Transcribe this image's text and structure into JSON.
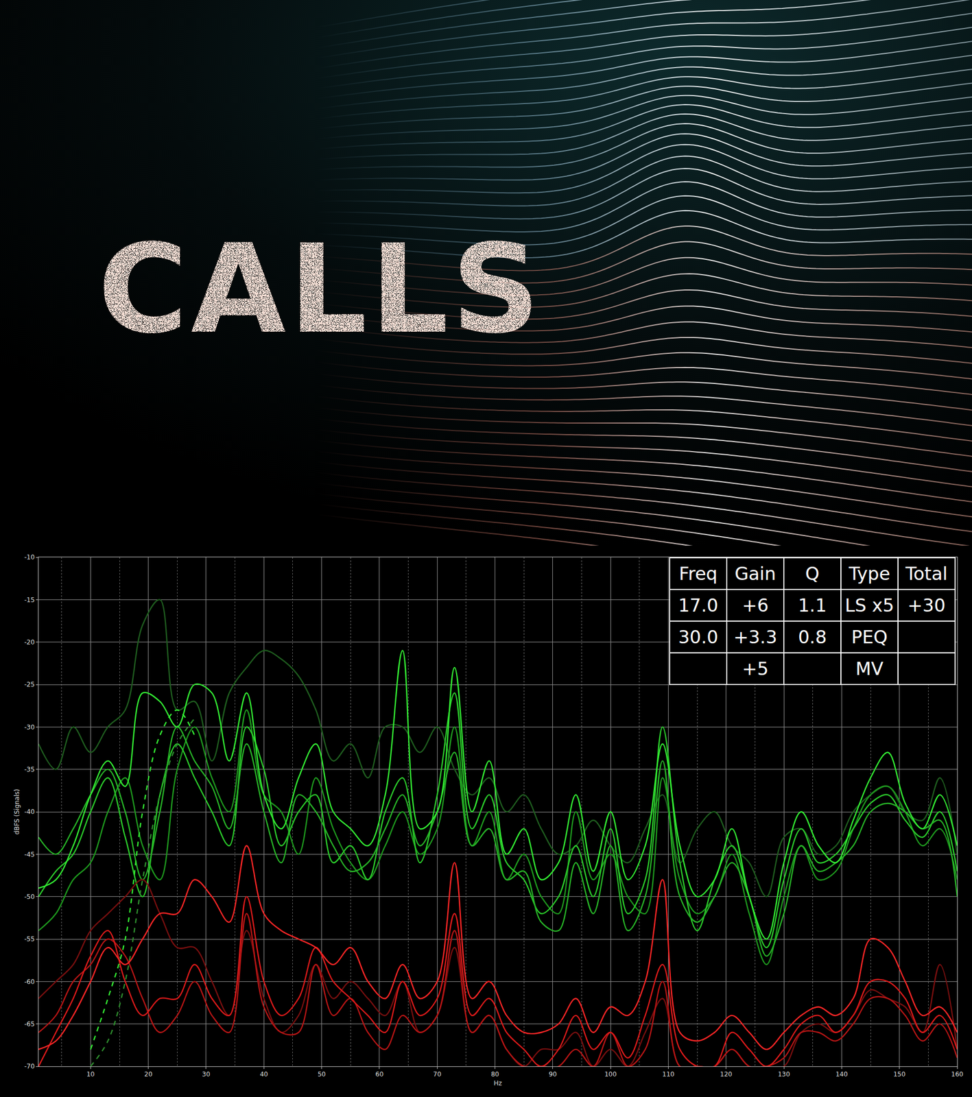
{
  "poster": {
    "title": "CALLS"
  },
  "chart_data": {
    "type": "line",
    "x_label": "Hz",
    "y_label": "dBFS (Signals)",
    "x": [
      1,
      4,
      7,
      10,
      13,
      16,
      19,
      22,
      25,
      28,
      31,
      34,
      37,
      40,
      43,
      46,
      49,
      52,
      55,
      58,
      61,
      64,
      67,
      70,
      73,
      76,
      79,
      82,
      85,
      88,
      91,
      94,
      97,
      100,
      103,
      106,
      109,
      112,
      115,
      118,
      121,
      124,
      127,
      130,
      133,
      136,
      139,
      142,
      145,
      148,
      151,
      154,
      157,
      160
    ],
    "xlim": [
      1,
      160
    ],
    "xticks": [
      10,
      20,
      30,
      40,
      50,
      60,
      70,
      80,
      90,
      100,
      110,
      120,
      130,
      140,
      150,
      160
    ],
    "ylim": [
      -70,
      -10
    ],
    "yticks": [
      -70,
      -65,
      -60,
      -55,
      -50,
      -45,
      -40,
      -35,
      -30,
      -25,
      -20,
      -15,
      -10
    ],
    "grid": true,
    "series": [
      {
        "color": "#1f5e1f",
        "line_style": "solid",
        "values": [
          -32,
          -35,
          -30,
          -33,
          -30,
          -28,
          -18,
          -15,
          -28,
          -27,
          -34,
          -26,
          -23,
          -21,
          -22,
          -24,
          -28,
          -34,
          -32,
          -36,
          -30,
          -30,
          -33,
          -30,
          -35,
          -38,
          -36,
          -40,
          -38,
          -42,
          -45,
          -44,
          -41,
          -44,
          -46,
          -42,
          -38,
          -46,
          -42,
          -40,
          -44,
          -46,
          -50,
          -43,
          -42,
          -45,
          -44,
          -40,
          -38,
          -37,
          -40,
          -41,
          -36,
          -45
        ]
      },
      {
        "color": "#1e9a1e",
        "line_style": "solid",
        "values": [
          -54,
          -52,
          -48,
          -46,
          -40,
          -36,
          -44,
          -48,
          -35,
          -30,
          -36,
          -40,
          -28,
          -38,
          -40,
          -45,
          -36,
          -42,
          -46,
          -48,
          -44,
          -40,
          -45,
          -42,
          -30,
          -44,
          -40,
          -48,
          -45,
          -50,
          -52,
          -40,
          -48,
          -45,
          -50,
          -52,
          -36,
          -48,
          -52,
          -50,
          -45,
          -52,
          -58,
          -50,
          -44,
          -48,
          -47,
          -42,
          -38,
          -37,
          -40,
          -44,
          -42,
          -48
        ]
      },
      {
        "color": "#2bcc2b",
        "line_style": "solid",
        "values": [
          -50,
          -47,
          -45,
          -40,
          -36,
          -43,
          -50,
          -38,
          -32,
          -36,
          -40,
          -44,
          -30,
          -35,
          -44,
          -40,
          -38,
          -46,
          -44,
          -48,
          -40,
          -36,
          -46,
          -38,
          -26,
          -42,
          -38,
          -46,
          -48,
          -52,
          -50,
          -44,
          -50,
          -42,
          -52,
          -48,
          -30,
          -46,
          -54,
          -48,
          -44,
          -50,
          -56,
          -48,
          -42,
          -46,
          -45,
          -42,
          -39,
          -38,
          -41,
          -43,
          -40,
          -47
        ]
      },
      {
        "color": "#27b527",
        "line_style": "solid",
        "values": [
          -43,
          -45,
          -42,
          -38,
          -35,
          -40,
          -48,
          -40,
          -30,
          -34,
          -37,
          -42,
          -32,
          -40,
          -46,
          -38,
          -40,
          -44,
          -47,
          -46,
          -42,
          -38,
          -44,
          -40,
          -33,
          -44,
          -42,
          -48,
          -47,
          -53,
          -54,
          -46,
          -52,
          -44,
          -54,
          -50,
          -34,
          -50,
          -53,
          -50,
          -46,
          -50,
          -57,
          -52,
          -44,
          -47,
          -46,
          -44,
          -40,
          -39,
          -40,
          -42,
          -41,
          -50
        ]
      },
      {
        "color": "#33ee33",
        "line_style": "solid",
        "values": [
          -49,
          -48,
          -44,
          -38,
          -34,
          -37,
          -26,
          -27,
          -30,
          -25,
          -26,
          -34,
          -26,
          -38,
          -42,
          -36,
          -32,
          -40,
          -42,
          -44,
          -38,
          -21,
          -42,
          -40,
          -23,
          -40,
          -34,
          -45,
          -42,
          -48,
          -46,
          -38,
          -47,
          -40,
          -48,
          -44,
          -32,
          -44,
          -50,
          -48,
          -42,
          -50,
          -55,
          -46,
          -40,
          -44,
          -46,
          -41,
          -36,
          -33,
          -39,
          -42,
          -38,
          -44
        ]
      },
      {
        "color": "#2e8f2e",
        "line_style": "dashed",
        "values": [
          null,
          null,
          null,
          -70,
          -67,
          -60,
          -48,
          -38,
          -32,
          -29,
          null,
          null,
          null,
          null,
          null,
          null,
          null,
          null,
          null,
          null,
          null,
          null,
          null,
          null,
          null,
          null,
          null,
          null,
          null,
          null,
          null,
          null,
          null,
          null,
          null,
          null,
          null,
          null,
          null,
          null,
          null,
          null,
          null,
          null,
          null,
          null,
          null,
          null,
          null,
          null,
          null,
          null,
          null,
          null
        ]
      },
      {
        "color": "#33ee33",
        "line_style": "dashed",
        "values": [
          null,
          null,
          null,
          -68,
          -62,
          -55,
          -40,
          -31,
          -28,
          -31,
          null,
          null,
          null,
          null,
          null,
          null,
          null,
          null,
          null,
          null,
          null,
          null,
          null,
          null,
          null,
          null,
          null,
          null,
          null,
          null,
          null,
          null,
          null,
          null,
          null,
          null,
          null,
          null,
          null,
          null,
          null,
          null,
          null,
          null,
          null,
          null,
          null,
          null,
          null,
          null,
          null,
          null,
          null,
          null
        ]
      },
      {
        "color": "#7a0f0f",
        "line_style": "solid",
        "values": [
          -62,
          -60,
          -58,
          -54,
          -52,
          -50,
          -48,
          -52,
          -56,
          -56,
          -60,
          -64,
          -54,
          -62,
          -66,
          -64,
          -58,
          -62,
          -60,
          -62,
          -64,
          -60,
          -66,
          -64,
          -56,
          -66,
          -64,
          -68,
          -70,
          -68,
          -68,
          -66,
          -70,
          -68,
          -70,
          -66,
          -62,
          -70,
          -70,
          -70,
          -68,
          -70,
          -70,
          -70,
          -66,
          -65,
          -66,
          -64,
          -61,
          -62,
          -63,
          -66,
          -58,
          -68
        ]
      },
      {
        "color": "#b81515",
        "line_style": "solid",
        "values": [
          -66,
          -64,
          -60,
          -58,
          -55,
          -57,
          -62,
          -66,
          -64,
          -60,
          -64,
          -66,
          -52,
          -63,
          -66,
          -66,
          -58,
          -64,
          -62,
          -66,
          -68,
          -64,
          -66,
          -64,
          -54,
          -66,
          -64,
          -68,
          -70,
          -70,
          -70,
          -68,
          -70,
          -66,
          -70,
          -68,
          -60,
          -70,
          -70,
          -70,
          -68,
          -70,
          -70,
          -69,
          -66,
          -66,
          -67,
          -65,
          -62,
          -62,
          -64,
          -67,
          -65,
          -69
        ]
      },
      {
        "color": "#dd1a1a",
        "line_style": "solid",
        "values": [
          -70,
          -66,
          -62,
          -57,
          -54,
          -60,
          -64,
          -62,
          -62,
          -58,
          -62,
          -64,
          -50,
          -60,
          -64,
          -62,
          -56,
          -60,
          -62,
          -64,
          -66,
          -60,
          -64,
          -62,
          -52,
          -64,
          -62,
          -66,
          -68,
          -70,
          -68,
          -64,
          -68,
          -66,
          -69,
          -64,
          -58,
          -68,
          -70,
          -70,
          -66,
          -68,
          -70,
          -68,
          -65,
          -64,
          -66,
          -64,
          -60,
          -60,
          -62,
          -66,
          -64,
          -68
        ]
      },
      {
        "color": "#ff2626",
        "line_style": "solid",
        "values": [
          -68,
          -67,
          -64,
          -60,
          -56,
          -58,
          -55,
          -52,
          -52,
          -48,
          -50,
          -53,
          -44,
          -52,
          -54,
          -55,
          -56,
          -58,
          -56,
          -60,
          -62,
          -58,
          -62,
          -60,
          -46,
          -62,
          -60,
          -64,
          -66,
          -66,
          -65,
          -62,
          -66,
          -63,
          -64,
          -60,
          -48,
          -66,
          -67,
          -66,
          -64,
          -66,
          -68,
          -66,
          -64,
          -63,
          -64,
          -62,
          -55,
          -56,
          -60,
          -64,
          -63,
          -66
        ]
      }
    ]
  },
  "table": {
    "header": [
      "Freq",
      "Gain",
      "Q",
      "Type",
      "Total"
    ],
    "rows": [
      [
        "17.0",
        "+6",
        "1.1",
        "LS x5",
        "+30"
      ],
      [
        "30.0",
        "+3.3",
        "0.8",
        "PEQ",
        null
      ],
      [
        null,
        "+5",
        null,
        "MV",
        null
      ]
    ]
  }
}
